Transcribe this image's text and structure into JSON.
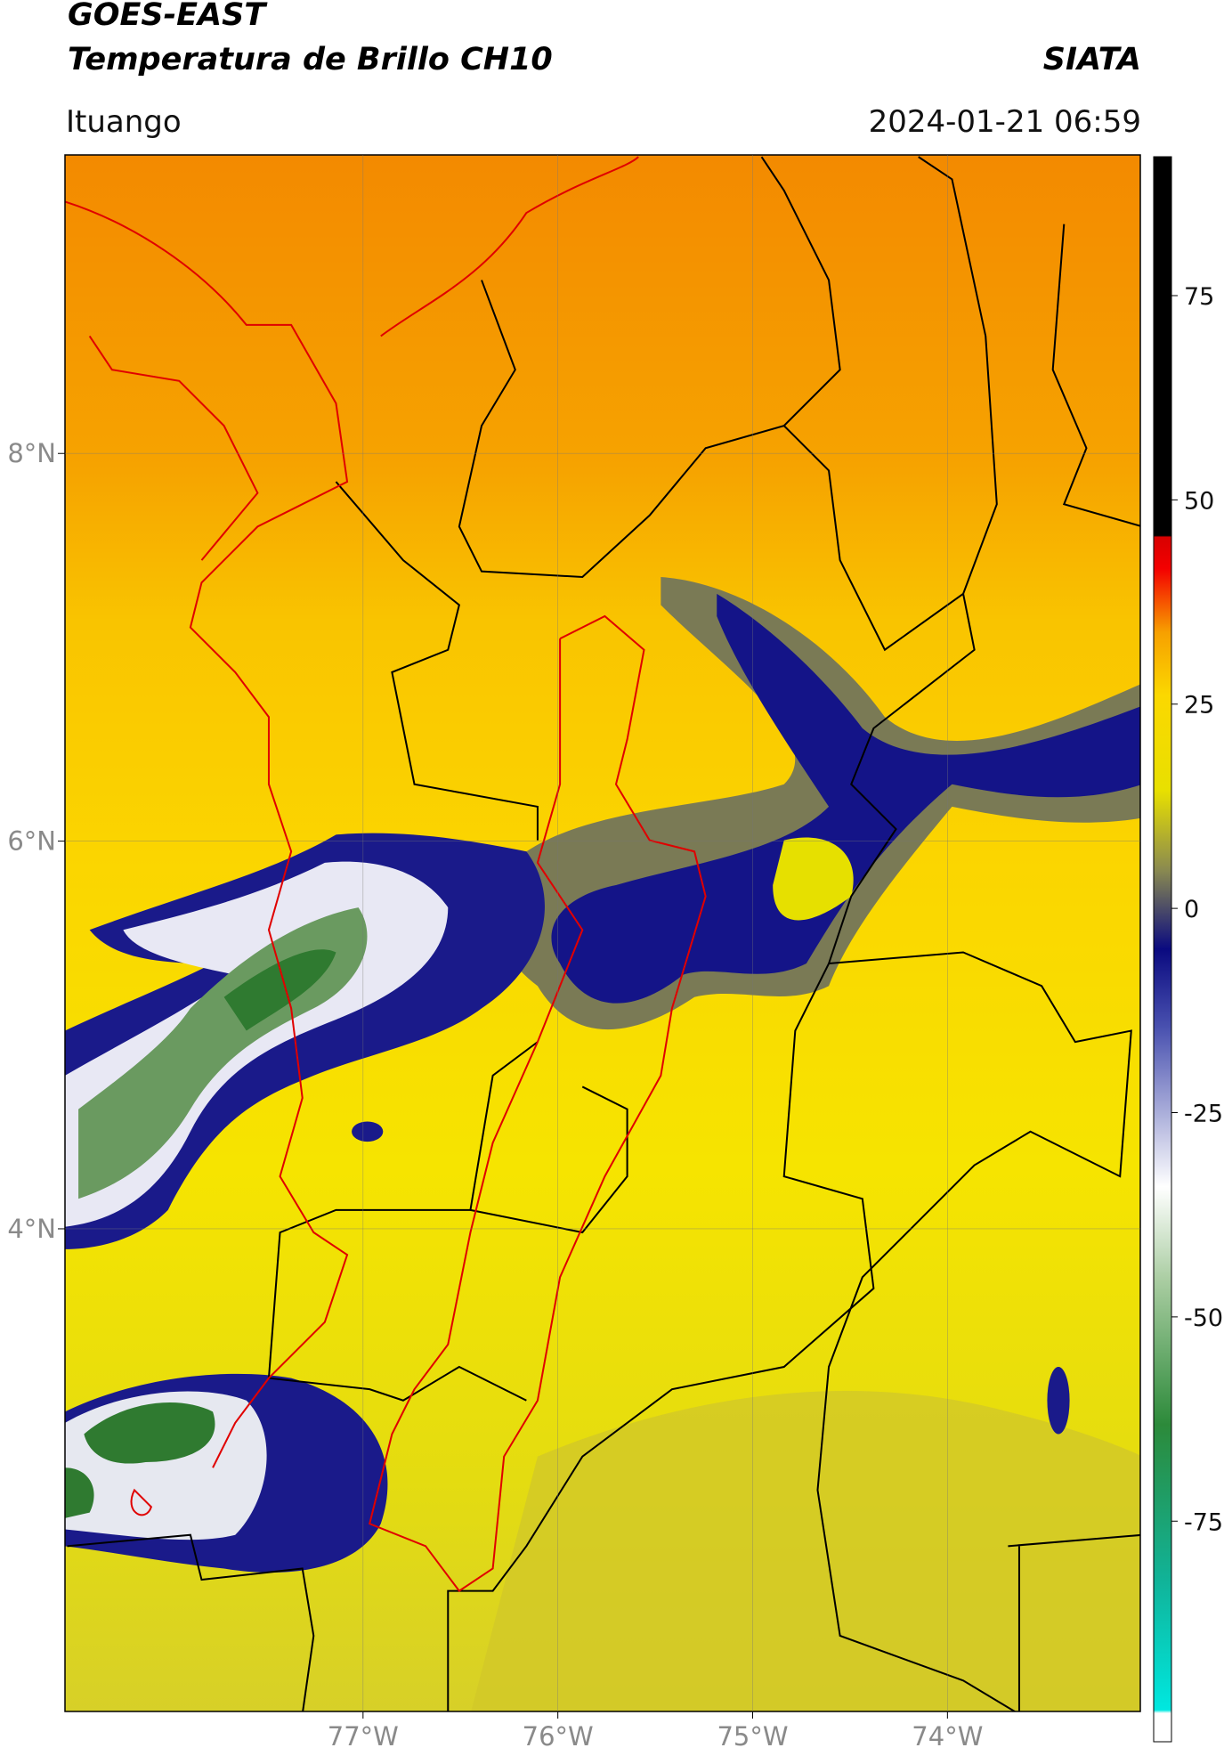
{
  "header": {
    "title": "GOES-EAST",
    "subtitle": "Temperatura de Brillo CH10",
    "institution": "SIATA",
    "location": "Ituango",
    "datetime": "2024-01-21 06:59"
  },
  "map": {
    "xlim": [
      -78.53,
      -73.01
    ],
    "ylim": [
      1.51,
      9.54
    ],
    "xticks": [
      {
        "value": -77,
        "label": "77°W"
      },
      {
        "value": -76,
        "label": "76°W"
      },
      {
        "value": -75,
        "label": "75°W"
      },
      {
        "value": -74,
        "label": "74°W"
      }
    ],
    "yticks": [
      {
        "value": 8,
        "label": "8°N"
      },
      {
        "value": 6,
        "label": "6°N"
      },
      {
        "value": 4,
        "label": "4°N"
      }
    ]
  },
  "colorbar": {
    "clim": [
      -102,
      92
    ],
    "ticks": [
      -75,
      -50,
      -25,
      0,
      25,
      50,
      75
    ]
  }
}
